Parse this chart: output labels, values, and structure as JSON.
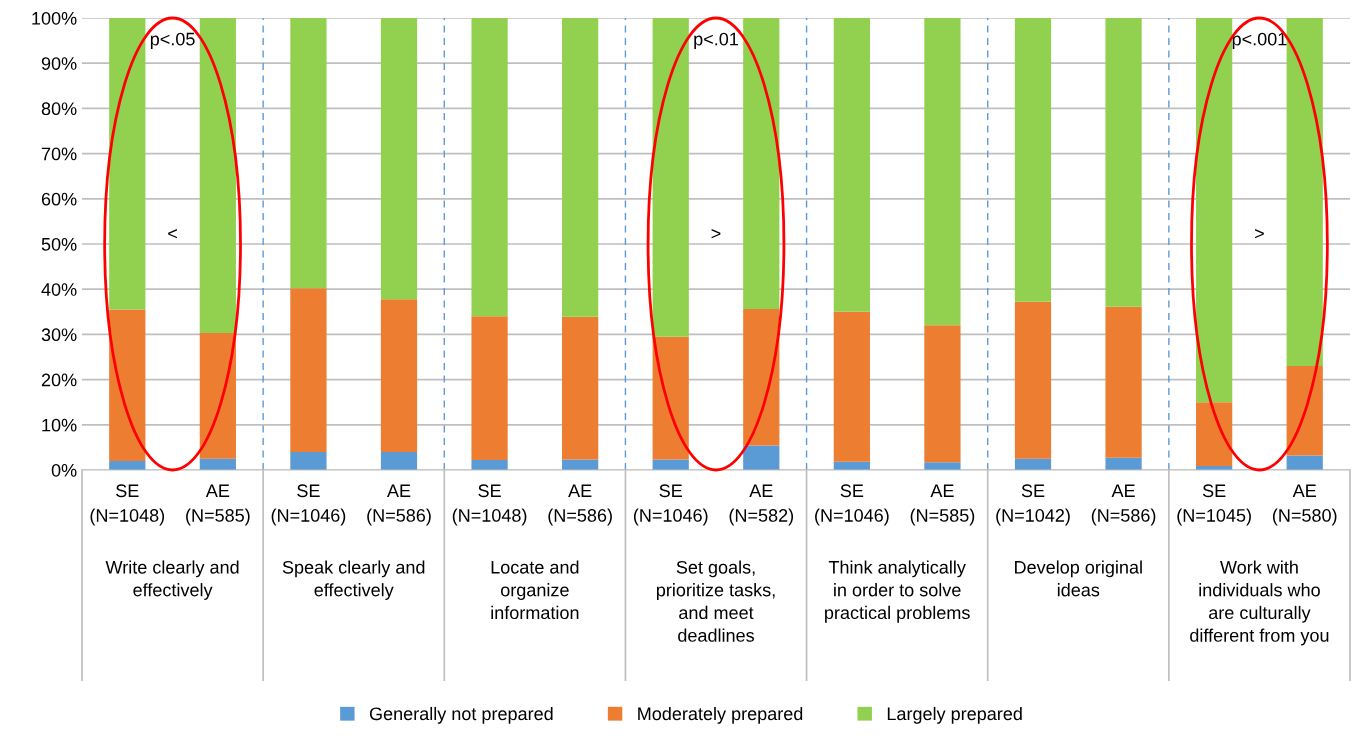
{
  "chart_data": {
    "type": "bar",
    "stacked": true,
    "categories": [
      "SE\n(N=1048)",
      "AE\n(N=585)",
      "SE\n(N=1046)",
      "AE\n(N=586)",
      "SE\n(N=1048)",
      "AE\n(N=586)",
      "SE\n(N=1046)",
      "AE\n(N=582)",
      "SE\n(N=1046)",
      "AE\n(N=585)",
      "SE\n(N=1042)",
      "AE\n(N=586)",
      "SE\n(N=1045)",
      "AE\n(N=580)"
    ],
    "series": [
      {
        "name": "Generally not prepared",
        "color": "#5b9bd5",
        "values": [
          2,
          2.5,
          4,
          4,
          2.2,
          2.3,
          2.3,
          5.4,
          1.8,
          1.7,
          2.5,
          2.7,
          0.9,
          3.2
        ]
      },
      {
        "name": "Moderately prepared",
        "color": "#ed7d31",
        "values": [
          33.5,
          27.8,
          36.2,
          33.8,
          31.8,
          31.6,
          27.2,
          30.2,
          33.2,
          30.3,
          34.7,
          33.4,
          14.1,
          19.8
        ]
      },
      {
        "name": "Largely prepared",
        "color": "#92d050",
        "values": [
          64.5,
          69.7,
          59.8,
          62.2,
          66,
          66.1,
          70.5,
          64.4,
          65,
          68,
          62.8,
          63.9,
          85,
          77
        ]
      }
    ],
    "ylim": [
      0,
      100
    ],
    "yticks": [
      {
        "value": 0,
        "label": "0%"
      },
      {
        "value": 10,
        "label": "10%"
      },
      {
        "value": 20,
        "label": "20%"
      },
      {
        "value": 30,
        "label": "30%"
      },
      {
        "value": 40,
        "label": "40%"
      },
      {
        "value": 50,
        "label": "50%"
      },
      {
        "value": 60,
        "label": "60%"
      },
      {
        "value": 70,
        "label": "70%"
      },
      {
        "value": 80,
        "label": "80%"
      },
      {
        "value": 90,
        "label": "90%"
      },
      {
        "value": 100,
        "label": "100%"
      }
    ],
    "grid": "y",
    "legend": "bottom",
    "annotations": [
      "Write clearly and\neffectively",
      "p<.05",
      "<",
      "Speak clearly and\neffectively",
      "Locate and\norganize\ninformation",
      "Set goals,\nprioritize tasks,\nand meet\ndeadlines",
      "p<.01",
      ">",
      "Think analytically\nin order to solve\npractical problems",
      "Develop original\nideas",
      "Work with\nindividuals who\nare culturally\ndifferent from you",
      "p<.001",
      ">"
    ]
  }
}
